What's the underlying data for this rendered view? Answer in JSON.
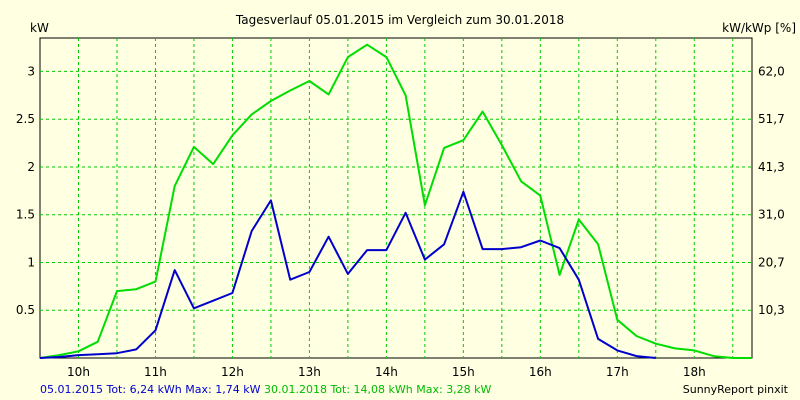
{
  "chart_data": {
    "type": "line",
    "title": "Tagesverlauf 05.01.2015 im Vergleich zum 30.01.2018",
    "y_left_label": "kW",
    "y_right_label": "kW/kWp [%]",
    "x_ticks": [
      "10h",
      "11h",
      "12h",
      "13h",
      "14h",
      "15h",
      "16h",
      "17h",
      "18h"
    ],
    "x_range": [
      9.5,
      18.75
    ],
    "y_ticks_left": [
      "0.5",
      "1",
      "1.5",
      "2",
      "2.5",
      "3"
    ],
    "y_ticks_left_values": [
      0.5,
      1,
      1.5,
      2,
      2.5,
      3
    ],
    "y_ticks_right": [
      "10,3",
      "20,7",
      "31,0",
      "41,3",
      "51,7",
      "62,0"
    ],
    "ylim": [
      0,
      3.35
    ],
    "grid": true,
    "series": [
      {
        "name": "05.01.2015",
        "color": "#0000cc",
        "x": [
          9.5,
          9.75,
          10.0,
          10.25,
          10.5,
          10.75,
          11.0,
          11.25,
          11.5,
          11.75,
          12.0,
          12.25,
          12.5,
          12.75,
          13.0,
          13.25,
          13.5,
          13.75,
          14.0,
          14.25,
          14.5,
          14.75,
          15.0,
          15.25,
          15.5,
          15.75,
          16.0,
          16.25,
          16.5,
          16.75,
          17.0,
          17.25,
          17.5
        ],
        "y": [
          0.0,
          0.01,
          0.03,
          0.04,
          0.05,
          0.09,
          0.29,
          0.92,
          0.52,
          0.6,
          0.68,
          1.33,
          1.65,
          0.82,
          0.9,
          1.27,
          0.88,
          1.13,
          1.13,
          1.52,
          1.03,
          1.19,
          1.74,
          1.14,
          1.14,
          1.16,
          1.23,
          1.15,
          0.82,
          0.2,
          0.08,
          0.02,
          0.0
        ]
      },
      {
        "name": "30.01.2018",
        "color": "#00dd00",
        "x": [
          9.5,
          9.75,
          10.0,
          10.25,
          10.5,
          10.75,
          11.0,
          11.25,
          11.5,
          11.75,
          12.0,
          12.25,
          12.5,
          12.75,
          13.0,
          13.25,
          13.5,
          13.75,
          14.0,
          14.25,
          14.5,
          14.75,
          15.0,
          15.25,
          15.5,
          15.75,
          16.0,
          16.25,
          16.5,
          16.75,
          17.0,
          17.25,
          17.5,
          17.75,
          18.0,
          18.25,
          18.5,
          18.75
        ],
        "y": [
          0.0,
          0.03,
          0.07,
          0.17,
          0.7,
          0.72,
          0.8,
          1.8,
          2.21,
          2.03,
          2.33,
          2.55,
          2.69,
          2.8,
          2.9,
          2.76,
          3.15,
          3.28,
          3.15,
          2.75,
          1.6,
          2.2,
          2.28,
          2.58,
          2.23,
          1.85,
          1.7,
          0.87,
          1.45,
          1.19,
          0.4,
          0.23,
          0.15,
          0.1,
          0.08,
          0.02,
          0.0,
          0.0
        ]
      }
    ]
  },
  "footer": {
    "blue_text": "05.01.2015 Tot: 6,24 kWh Max: 1,74 kW",
    "green_text": "30.01.2018 Tot: 14,08 kWh Max: 3,28 kW",
    "right_text": "SunnyReport pinxit"
  }
}
